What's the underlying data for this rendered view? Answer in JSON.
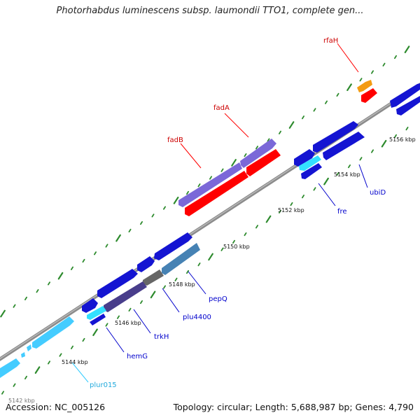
{
  "title": "Photorhabdus luminescens subsp. laumondii TTO1, complete gen...",
  "genes": {
    "rfaH": "rfaH",
    "fadA": "fadA",
    "fadB": "fadB",
    "ubiD": "ubiD",
    "fre": "fre",
    "pepQ": "pepQ",
    "plu4400": "plu4400",
    "trkH": "trkH",
    "hemG": "hemG",
    "plur015": "plur015"
  },
  "kbp_labels": [
    "5156 kbp",
    "5154 kbp",
    "5152 kbp",
    "5150 kbp",
    "5148 kbp",
    "5146 kbp",
    "5144 kbp",
    "5142 kbp"
  ],
  "footer": {
    "accession": "Accession: NC_005126",
    "topology": "Topology: circular; Length: 5,688,987 bp; Genes: 4,790"
  },
  "colors": {
    "tick": "#2e8b2e",
    "backbone": "#8c8c8c",
    "forward_label": "#cc0000",
    "reverse_label": "#0000cc",
    "rna_label": "#22aadd"
  }
}
